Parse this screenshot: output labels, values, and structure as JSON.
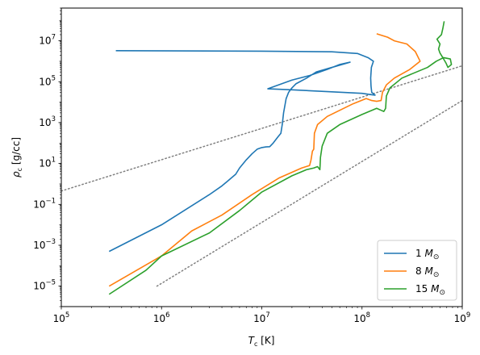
{
  "chart_data": {
    "type": "line",
    "xlabel": "T_c [K]",
    "ylabel": "ρ_c [g/cc]",
    "xscale": "log",
    "yscale": "log",
    "xlim": [
      100000,
      1000000000
    ],
    "ylim": [
      1e-06,
      400000000
    ],
    "x_ticks": [
      {
        "value": 100000,
        "base": "10",
        "exp": "5"
      },
      {
        "value": 1000000,
        "base": "10",
        "exp": "6"
      },
      {
        "value": 10000000,
        "base": "10",
        "exp": "7"
      },
      {
        "value": 100000000,
        "base": "10",
        "exp": "8"
      },
      {
        "value": 1000000000,
        "base": "10",
        "exp": "9"
      }
    ],
    "y_ticks": [
      {
        "value": 1e-05,
        "base": "10",
        "exp": "−5"
      },
      {
        "value": 0.001,
        "base": "10",
        "exp": "−3"
      },
      {
        "value": 0.1,
        "base": "10",
        "exp": "−1"
      },
      {
        "value": 10,
        "base": "10",
        "exp": "1"
      },
      {
        "value": 1000,
        "base": "10",
        "exp": "3"
      },
      {
        "value": 100000,
        "base": "10",
        "exp": "5"
      },
      {
        "value": 10000000,
        "base": "10",
        "exp": "7"
      }
    ],
    "legend_position": "bottom-right",
    "series": [
      {
        "name": "1 M_⊙",
        "legend_label": "1",
        "legend_symbol": "M",
        "legend_sub": "⊙",
        "color": "#1f77b4",
        "points": [
          [
            300000,
            0.0005
          ],
          [
            1000000,
            0.01
          ],
          [
            3000000,
            0.3
          ],
          [
            4000000,
            0.8
          ],
          [
            4500000,
            1.3
          ],
          [
            5500000,
            3
          ],
          [
            6000000,
            6
          ],
          [
            7000000,
            15
          ],
          [
            8000000,
            30
          ],
          [
            9000000,
            50
          ],
          [
            10000000,
            60
          ],
          [
            11000000,
            65
          ],
          [
            12000000,
            66
          ],
          [
            13000000,
            100
          ],
          [
            14500000,
            200
          ],
          [
            15500000,
            300
          ],
          [
            16000000,
            800
          ],
          [
            16500000,
            3000
          ],
          [
            17500000,
            15000
          ],
          [
            18500000,
            30000
          ],
          [
            20000000,
            50000
          ],
          [
            22000000,
            80000
          ],
          [
            24000000,
            100000
          ],
          [
            28000000,
            150000
          ],
          [
            35000000,
            300000
          ],
          [
            50000000,
            500000
          ],
          [
            76000000,
            900000
          ],
          [
            60000000,
            700000
          ],
          [
            45000000,
            400000
          ],
          [
            30000000,
            200000
          ],
          [
            20000000,
            120000
          ],
          [
            11500000,
            45000
          ],
          [
            20000000,
            40000
          ],
          [
            50000000,
            32000
          ],
          [
            100000000,
            27000
          ],
          [
            125000000,
            23000
          ],
          [
            135000000,
            22000
          ],
          [
            125000000,
            30000
          ],
          [
            123000000,
            60000
          ],
          [
            122000000,
            150000
          ],
          [
            124000000,
            500000
          ],
          [
            130000000,
            1000000
          ],
          [
            115000000,
            1500000
          ],
          [
            90000000,
            2400000
          ],
          [
            50000000,
            2900000
          ],
          [
            10000000,
            3100000
          ],
          [
            350000,
            3300000
          ]
        ]
      },
      {
        "name": "8 M_⊙",
        "legend_label": "8",
        "legend_symbol": "M",
        "legend_sub": "⊙",
        "color": "#ff7f0e",
        "points": [
          [
            300000,
            1e-05
          ],
          [
            1000000,
            0.0003
          ],
          [
            2000000,
            0.005
          ],
          [
            4000000,
            0.03
          ],
          [
            8000000,
            0.3
          ],
          [
            15000000,
            2
          ],
          [
            25000000,
            6
          ],
          [
            30000000,
            8
          ],
          [
            31000000,
            15
          ],
          [
            32000000,
            40
          ],
          [
            33000000,
            50
          ],
          [
            33500000,
            300
          ],
          [
            36000000,
            800
          ],
          [
            45000000,
            2000
          ],
          [
            80000000,
            8000
          ],
          [
            110000000,
            15000
          ],
          [
            125000000,
            12000
          ],
          [
            140000000,
            11000
          ],
          [
            155000000,
            12000
          ],
          [
            160000000,
            30000
          ],
          [
            175000000,
            70000
          ],
          [
            210000000,
            150000
          ],
          [
            300000000,
            400000
          ],
          [
            380000000,
            1000000
          ],
          [
            340000000,
            3000000
          ],
          [
            280000000,
            7000000
          ],
          [
            210000000,
            10000000
          ],
          [
            180000000,
            15000000
          ],
          [
            140000000,
            22000000
          ]
        ]
      },
      {
        "name": "15 M_⊙",
        "legend_label": "15",
        "legend_symbol": "M",
        "legend_sub": "⊙",
        "color": "#2ca02c",
        "points": [
          [
            300000,
            4e-06
          ],
          [
            700000,
            6e-05
          ],
          [
            1000000,
            0.0003
          ],
          [
            3000000,
            0.004
          ],
          [
            6000000,
            0.05
          ],
          [
            10000000,
            0.4
          ],
          [
            20000000,
            2.5
          ],
          [
            28000000,
            5
          ],
          [
            33000000,
            6
          ],
          [
            36000000,
            7
          ],
          [
            38000000,
            5
          ],
          [
            38500000,
            20
          ],
          [
            40000000,
            70
          ],
          [
            45000000,
            300
          ],
          [
            60000000,
            800
          ],
          [
            100000000,
            2500
          ],
          [
            140000000,
            5000
          ],
          [
            155000000,
            4000
          ],
          [
            165000000,
            3500
          ],
          [
            172000000,
            5000
          ],
          [
            175000000,
            20000
          ],
          [
            190000000,
            50000
          ],
          [
            250000000,
            150000
          ],
          [
            320000000,
            250000
          ],
          [
            450000000,
            500000
          ],
          [
            550000000,
            1000000
          ],
          [
            650000000,
            1500000
          ],
          [
            760000000,
            1300000
          ],
          [
            780000000,
            700000
          ],
          [
            720000000,
            500000
          ],
          [
            690000000,
            800000
          ],
          [
            640000000,
            1500000
          ],
          [
            600000000,
            2500000
          ],
          [
            580000000,
            4000000
          ],
          [
            600000000,
            7000000
          ],
          [
            560000000,
            12000000
          ],
          [
            620000000,
            20000000
          ],
          [
            640000000,
            40000000
          ],
          [
            660000000,
            90000000
          ]
        ]
      }
    ],
    "reference_lines": [
      {
        "x": [
          100000,
          1000000000
        ],
        "y": [
          0.45,
          600000
        ],
        "color": "#808080",
        "style": "dotted"
      },
      {
        "x": [
          900000,
          1000000000
        ],
        "y": [
          1e-05,
          12000
        ],
        "color": "#808080",
        "style": "dotted"
      }
    ]
  }
}
